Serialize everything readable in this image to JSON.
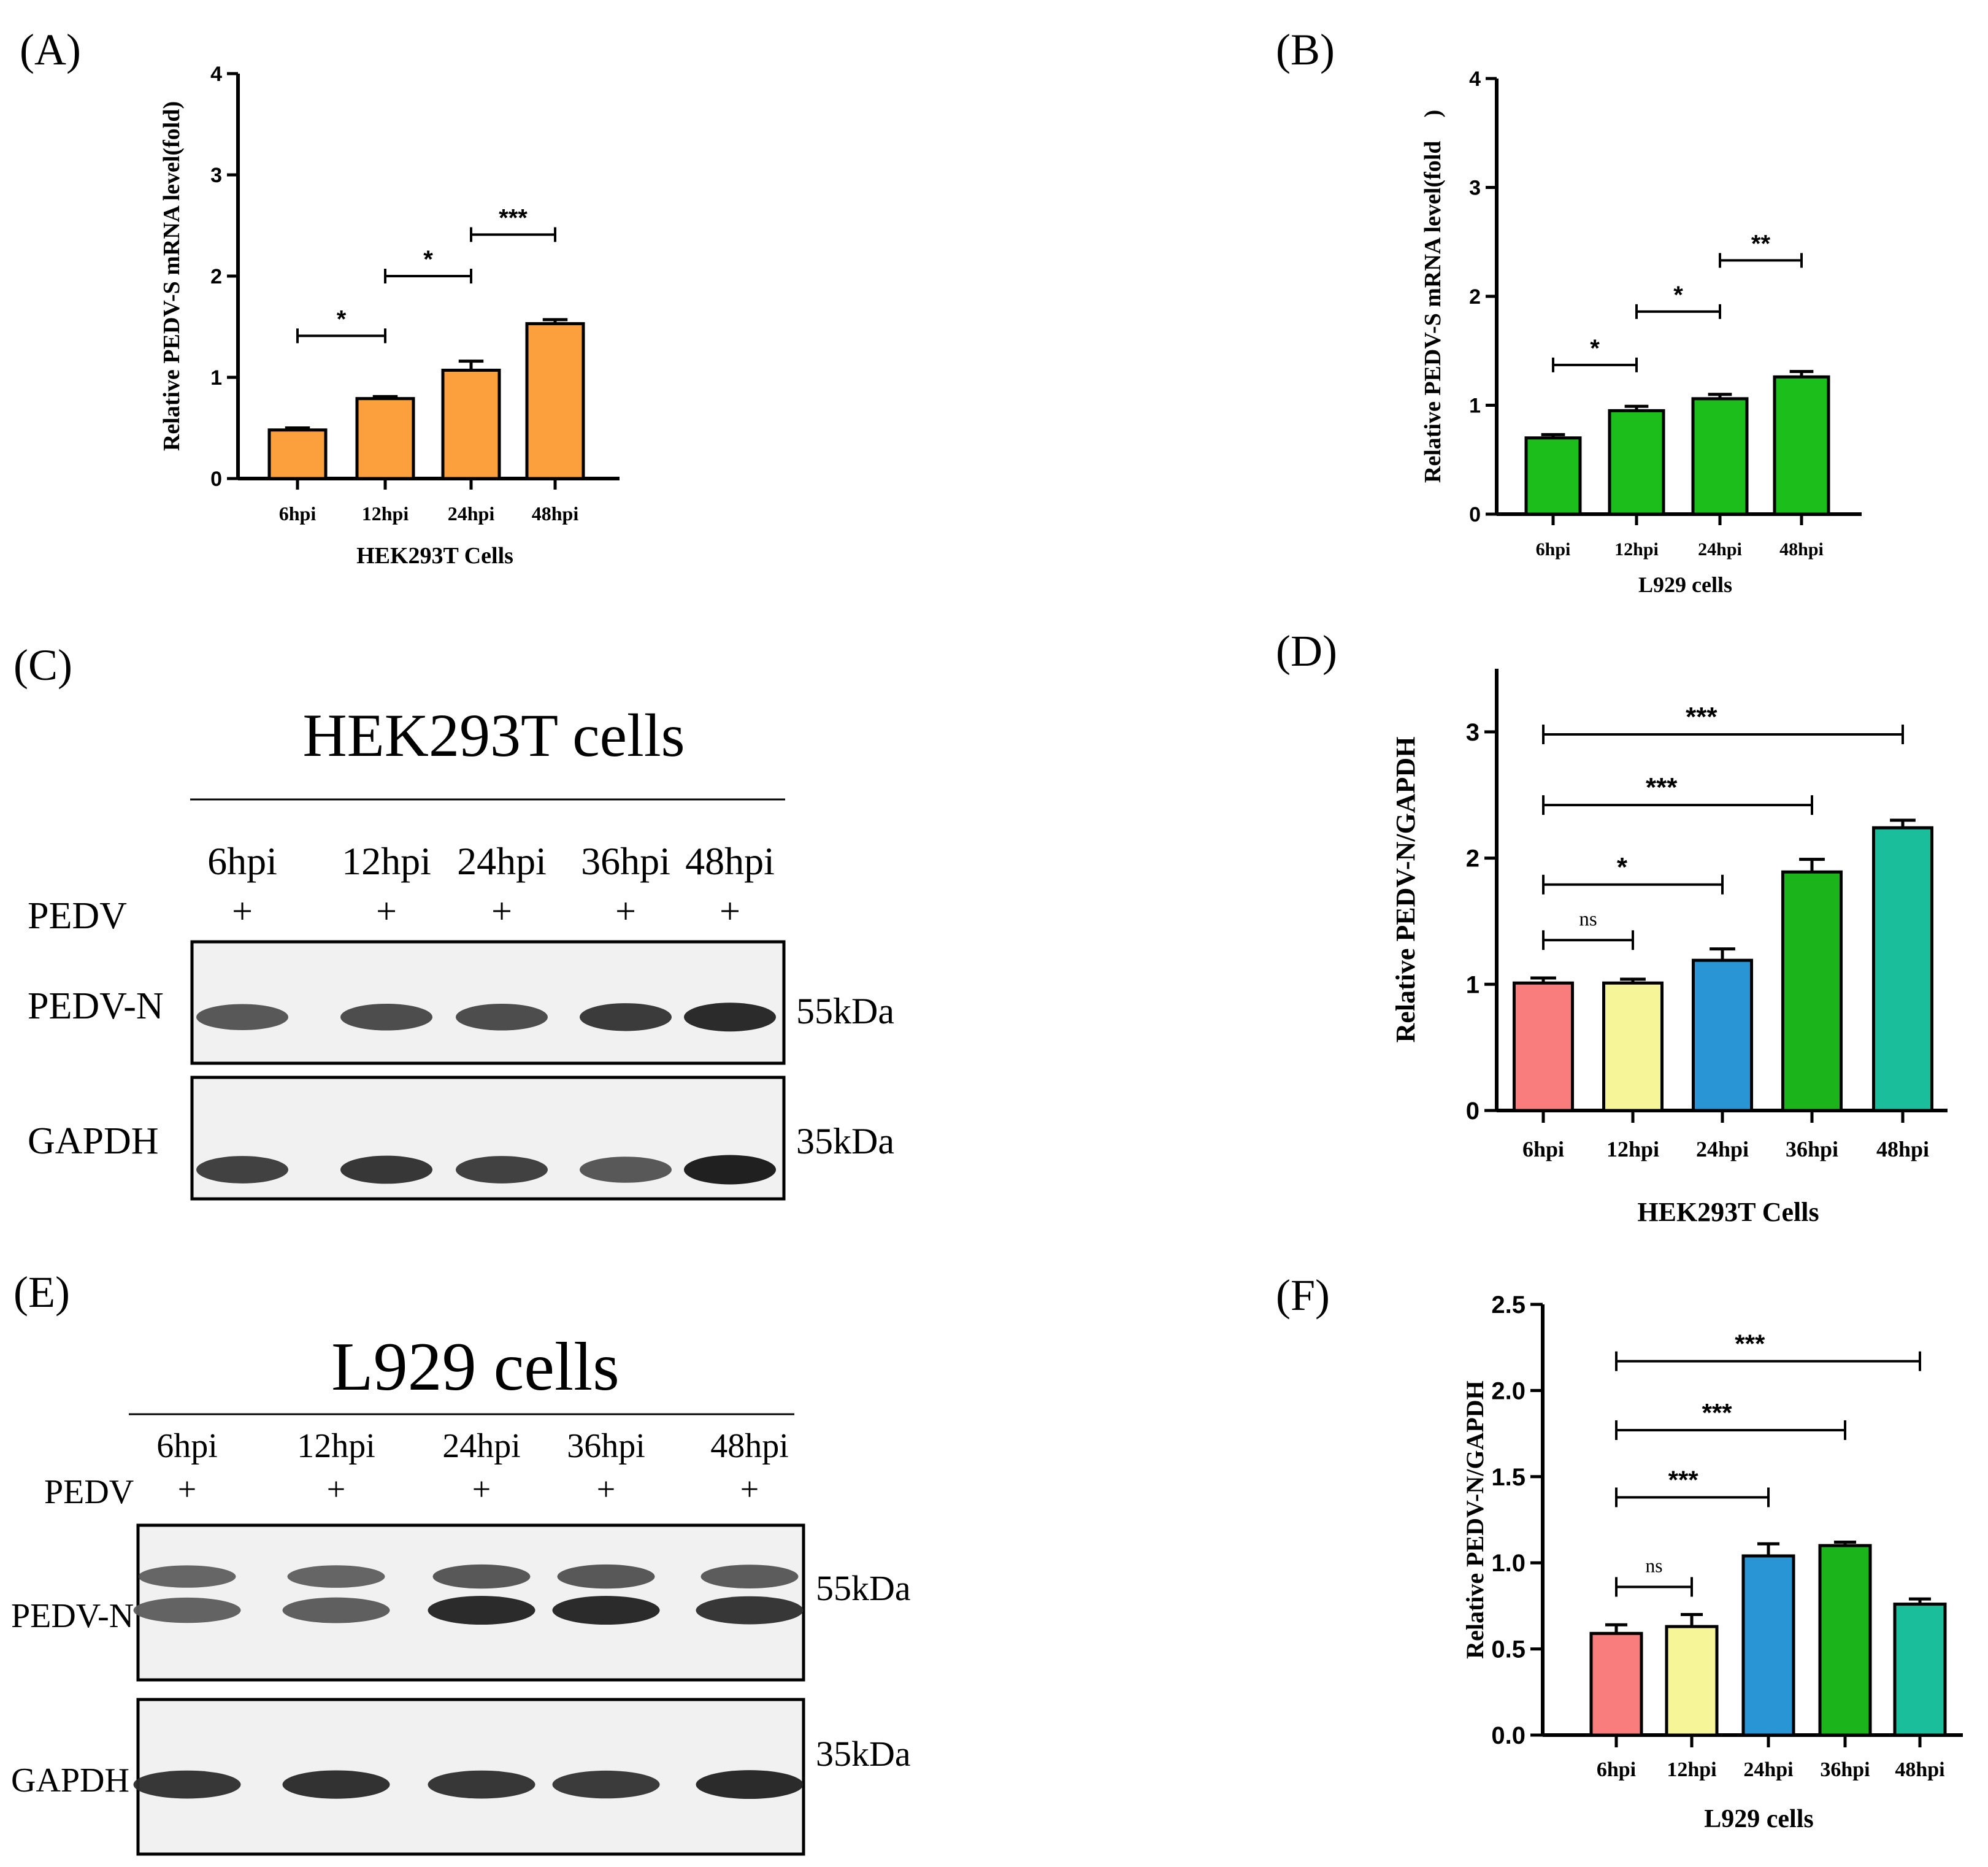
{
  "panels": {
    "a": "(A)",
    "b": "(B)",
    "c": "(C)",
    "d": "(D)",
    "e": "(E)",
    "f": "(F)"
  },
  "chart_data": [
    {
      "id": "A",
      "type": "bar",
      "title": "",
      "ylabel": "Relative PEDV-S mRNA level(fold)",
      "xlabel": "HEK293T Cells",
      "categories": [
        "6hpi",
        "12hpi",
        "24hpi",
        "48hpi"
      ],
      "values": [
        0.48,
        0.79,
        1.07,
        1.53
      ],
      "errors": [
        0.02,
        0.02,
        0.09,
        0.04
      ],
      "ylim": [
        0,
        4
      ],
      "yticks": [
        "0",
        "1",
        "2",
        "3",
        "4"
      ],
      "ytick_values": [
        0,
        1,
        2,
        3,
        4
      ],
      "colors": [
        "#FBA03C",
        "#FBA03C",
        "#FBA03C",
        "#FBA03C"
      ],
      "significance": [
        {
          "from": 0,
          "to": 1,
          "label": "*",
          "y": 1.41
        },
        {
          "from": 1,
          "to": 2,
          "label": "*",
          "y": 2.0
        },
        {
          "from": 2,
          "to": 3,
          "label": "***",
          "y": 2.41
        }
      ]
    },
    {
      "id": "B",
      "type": "bar",
      "title": "",
      "ylabel": "Relative PEDV-S mRNA level(fold　)",
      "xlabel": "L929 cells",
      "categories": [
        "6hpi",
        "12hpi",
        "24hpi",
        "48hpi"
      ],
      "values": [
        0.7,
        0.95,
        1.06,
        1.26
      ],
      "errors": [
        0.03,
        0.04,
        0.04,
        0.05
      ],
      "ylim": [
        0,
        4
      ],
      "yticks": [
        "0",
        "1",
        "2",
        "3",
        "4"
      ],
      "ytick_values": [
        0,
        1,
        2,
        3,
        4
      ],
      "colors": [
        "#1BBE1B",
        "#1BBE1B",
        "#1BBE1B",
        "#1BBE1B"
      ],
      "significance": [
        {
          "from": 0,
          "to": 1,
          "label": "*",
          "y": 1.37
        },
        {
          "from": 1,
          "to": 2,
          "label": "*",
          "y": 1.86
        },
        {
          "from": 2,
          "to": 3,
          "label": "**",
          "y": 2.33
        }
      ]
    },
    {
      "id": "D",
      "type": "bar",
      "title": "",
      "ylabel": "Relative PEDV-N/GAPDH",
      "xlabel": "HEK293T Cells",
      "categories": [
        "6hpi",
        "12hpi",
        "24hpi",
        "36hpi",
        "48hpi"
      ],
      "values": [
        1.01,
        1.01,
        1.19,
        1.89,
        2.24
      ],
      "errors": [
        0.04,
        0.03,
        0.09,
        0.1,
        0.06
      ],
      "ylim": [
        0,
        3.5
      ],
      "yticks": [
        "0",
        "1",
        "2",
        "3"
      ],
      "ytick_values": [
        0,
        1,
        2,
        3
      ],
      "colors": [
        "#FA7D7D",
        "#F6F598",
        "#2A95D5",
        "#1BB51B",
        "#1BBE9B"
      ],
      "significance": [
        {
          "from": 0,
          "to": 1,
          "label": "ns",
          "y": 1.35
        },
        {
          "from": 0,
          "to": 2,
          "label": "*",
          "y": 1.79
        },
        {
          "from": 0,
          "to": 3,
          "label": "***",
          "y": 2.42
        },
        {
          "from": 0,
          "to": 4,
          "label": "***",
          "y": 2.98
        }
      ]
    },
    {
      "id": "F",
      "type": "bar",
      "title": "",
      "ylabel": "Relative PEDV-N/GAPDH",
      "xlabel": "L929 cells",
      "categories": [
        "6hpi",
        "12hpi",
        "24hpi",
        "36hpi",
        "48hpi"
      ],
      "values": [
        0.59,
        0.63,
        1.04,
        1.1,
        0.76
      ],
      "errors": [
        0.05,
        0.07,
        0.07,
        0.02,
        0.03
      ],
      "ylim": [
        0,
        2.5
      ],
      "yticks": [
        "0.0",
        "0.5",
        "1.0",
        "1.5",
        "2.0",
        "2.5"
      ],
      "ytick_values": [
        0,
        0.5,
        1.0,
        1.5,
        2.0,
        2.5
      ],
      "colors": [
        "#FA7D7D",
        "#F6F598",
        "#2A95D5",
        "#1BB51B",
        "#1BBE9B"
      ],
      "significance": [
        {
          "from": 0,
          "to": 1,
          "label": "ns",
          "y": 0.86
        },
        {
          "from": 0,
          "to": 2,
          "label": "***",
          "y": 1.38
        },
        {
          "from": 0,
          "to": 3,
          "label": "***",
          "y": 1.77
        },
        {
          "from": 0,
          "to": 4,
          "label": "***",
          "y": 2.17
        }
      ]
    }
  ],
  "blots": [
    {
      "id": "C",
      "title": "HEK293T cells",
      "lanes": [
        "6hpi",
        "12hpi",
        "24hpi",
        "36hpi",
        "48hpi"
      ],
      "treatment_label": "PEDV",
      "treatment": [
        "+",
        "+",
        "+",
        "+",
        "+"
      ],
      "rows": [
        {
          "label": "PEDV-N",
          "size": "55kDa",
          "intensity": [
            0.75,
            0.8,
            0.8,
            0.88,
            0.95
          ]
        },
        {
          "label": "GAPDH",
          "size": "35kDa",
          "intensity": [
            0.85,
            0.9,
            0.85,
            0.75,
            1.0
          ]
        }
      ]
    },
    {
      "id": "E",
      "title": "L929 cells",
      "lanes": [
        "6hpi",
        "12hpi",
        "24hpi",
        "36hpi",
        "48hpi"
      ],
      "treatment_label": "PEDV",
      "treatment": [
        "+",
        "+",
        "+",
        "+",
        "+"
      ],
      "rows": [
        {
          "label": "PEDV-N",
          "size": "55kDa",
          "intensity": [
            0.7,
            0.72,
            0.95,
            0.95,
            0.9
          ]
        },
        {
          "label": "GAPDH",
          "size": "35kDa",
          "intensity": [
            0.9,
            0.92,
            0.9,
            0.88,
            0.95
          ]
        }
      ]
    }
  ]
}
